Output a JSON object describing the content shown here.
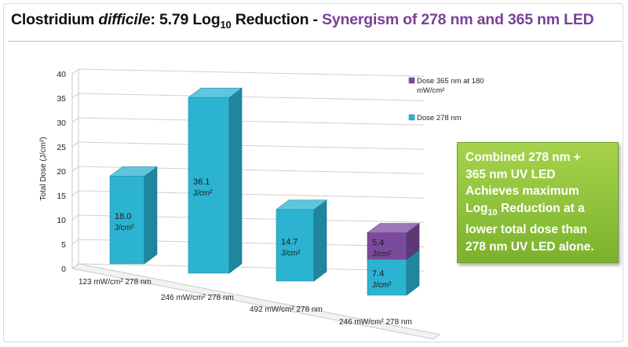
{
  "title": {
    "part1": "Clostridium",
    "part2": "difficile",
    "part3": ": 5.79 Log",
    "sub": "10",
    "part4": " Reduction - ",
    "highlight": "Synergism of 278 nm and 365 nm LED"
  },
  "callout": {
    "line1": "Combined 278 nm +",
    "line2": "365 nm UV LED",
    "line3": "Achieves maximum",
    "line4a": "Log",
    "line4sub": "10",
    "line4b": " Reduction at a",
    "line5": "lower total dose than",
    "line6": "278 nm UV LED alone."
  },
  "colors": {
    "dose278": "#2bb3d1",
    "dose365": "#7a4b9c",
    "callout_green": "#8dc03a",
    "title_highlight": "#7b3f99"
  },
  "chart_data": {
    "type": "bar",
    "stacked": true,
    "three_d": true,
    "categories": [
      "123 mW/cm² 278 nm",
      "246 mW/cm² 278 nm",
      "492 mW/cm² 278 nm",
      "246 mW/cm² 278 nm"
    ],
    "series": [
      {
        "name": "Dose 278 nm",
        "color": "#2bb3d1",
        "values": [
          18.0,
          36.1,
          14.7,
          7.4
        ],
        "labels": [
          "18.0",
          "36.1",
          "14.7",
          "7.4"
        ]
      },
      {
        "name": "Dose 365 nm at 180 mW/cm²",
        "color": "#7a4b9c",
        "values": [
          0,
          0,
          0,
          5.4
        ],
        "labels": [
          "",
          "",
          "",
          "5.4"
        ]
      }
    ],
    "label_unit": "J/cm²",
    "ylabel": "Total Dose (J/cm²)",
    "ylim": [
      0,
      40
    ],
    "yticks": [
      0,
      5,
      10,
      15,
      20,
      25,
      30,
      35,
      40
    ],
    "grid": true,
    "legend_position": "right"
  }
}
